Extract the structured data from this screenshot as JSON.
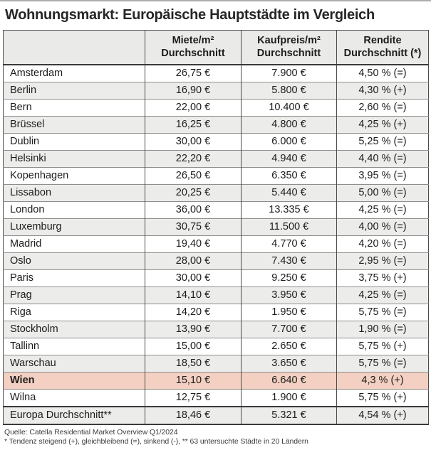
{
  "title": "Wohnungsmarkt: Europäische Hauptstädte im Vergleich",
  "chart_data": {
    "type": "table",
    "title": "Wohnungsmarkt: Europäische Hauptstädte im Vergleich",
    "columns": [
      {
        "line1": "",
        "line2": ""
      },
      {
        "line1": "Miete/m²",
        "line2": "Durchschnitt"
      },
      {
        "line1": "Kaufpreis/m²",
        "line2": "Durchschnitt"
      },
      {
        "line1": "Rendite",
        "line2": "Durchschnitt (*)"
      }
    ],
    "rows": [
      {
        "city": "Amsterdam",
        "rent": "26,75 €",
        "price": "7.900 €",
        "yield": "4,50 % (=)",
        "highlight": false,
        "summary": false
      },
      {
        "city": "Berlin",
        "rent": "16,90 €",
        "price": "5.800 €",
        "yield": "4,30 % (+)",
        "highlight": false,
        "summary": false
      },
      {
        "city": "Bern",
        "rent": "22,00 €",
        "price": "10.400 €",
        "yield": "2,60 % (=)",
        "highlight": false,
        "summary": false
      },
      {
        "city": "Brüssel",
        "rent": "16,25 €",
        "price": "4.800 €",
        "yield": "4,25 % (+)",
        "highlight": false,
        "summary": false
      },
      {
        "city": "Dublin",
        "rent": "30,00 €",
        "price": "6.000 €",
        "yield": "5,25 % (=)",
        "highlight": false,
        "summary": false
      },
      {
        "city": "Helsinki",
        "rent": "22,20 €",
        "price": "4.940 €",
        "yield": "4,40 % (=)",
        "highlight": false,
        "summary": false
      },
      {
        "city": "Kopenhagen",
        "rent": "26,50 €",
        "price": "6.350 €",
        "yield": "3,95 % (=)",
        "highlight": false,
        "summary": false
      },
      {
        "city": "Lissabon",
        "rent": "20,25 €",
        "price": "5.440 €",
        "yield": "5,00 % (=)",
        "highlight": false,
        "summary": false
      },
      {
        "city": "London",
        "rent": "36,00 €",
        "price": "13.335 €",
        "yield": "4,25 % (=)",
        "highlight": false,
        "summary": false
      },
      {
        "city": "Luxemburg",
        "rent": "30,75 €",
        "price": "11.500 €",
        "yield": "4,00 % (=)",
        "highlight": false,
        "summary": false
      },
      {
        "city": "Madrid",
        "rent": "19,40 €",
        "price": "4.770 €",
        "yield": "4,20 % (=)",
        "highlight": false,
        "summary": false
      },
      {
        "city": "Oslo",
        "rent": "28,00 €",
        "price": "7.430 €",
        "yield": "2,95 % (=)",
        "highlight": false,
        "summary": false
      },
      {
        "city": "Paris",
        "rent": "30,00 €",
        "price": "9.250 €",
        "yield": "3,75 % (+)",
        "highlight": false,
        "summary": false
      },
      {
        "city": "Prag",
        "rent": "14,10 €",
        "price": "3.950 €",
        "yield": "4,25 % (=)",
        "highlight": false,
        "summary": false
      },
      {
        "city": "Riga",
        "rent": "14,20 €",
        "price": "1.950 €",
        "yield": "5,75 % (=)",
        "highlight": false,
        "summary": false
      },
      {
        "city": "Stockholm",
        "rent": "13,90 €",
        "price": "7.700 €",
        "yield": "1,90 % (=)",
        "highlight": false,
        "summary": false
      },
      {
        "city": "Tallinn",
        "rent": "15,00 €",
        "price": "2.650 €",
        "yield": "5,75 % (+)",
        "highlight": false,
        "summary": false
      },
      {
        "city": "Warschau",
        "rent": "18,50 €",
        "price": "3.650 €",
        "yield": "5,75 % (=)",
        "highlight": false,
        "summary": false
      },
      {
        "city": "Wien",
        "rent": "15,10 €",
        "price": "6.640 €",
        "yield": "4,3 % (+)",
        "highlight": true,
        "summary": false
      },
      {
        "city": "Wilna",
        "rent": "12,75 €",
        "price": "1.900 €",
        "yield": "5,75 % (+)",
        "highlight": false,
        "summary": false
      },
      {
        "city": "Europa Durchschnitt**",
        "rent": "18,46 €",
        "price": "5.321 €",
        "yield": "4,54 % (+)",
        "highlight": false,
        "summary": true
      }
    ],
    "highlighted_row": "Wien",
    "legend_position": "none",
    "grid": true
  },
  "footer": {
    "source": "Quelle: Catella Residential Market Overview Q1/2024",
    "note": "* Tendenz steigend (+), gleichbleibend (=), sinkend (-), ** 63 untersuchte Städte in 20 Ländern"
  },
  "colors": {
    "highlight_row": "#f3d0c1",
    "alt_row": "#ececea",
    "header_bg": "#eaeae8",
    "border_dark": "#3a3a3a",
    "border_light": "#8e8e8c"
  }
}
